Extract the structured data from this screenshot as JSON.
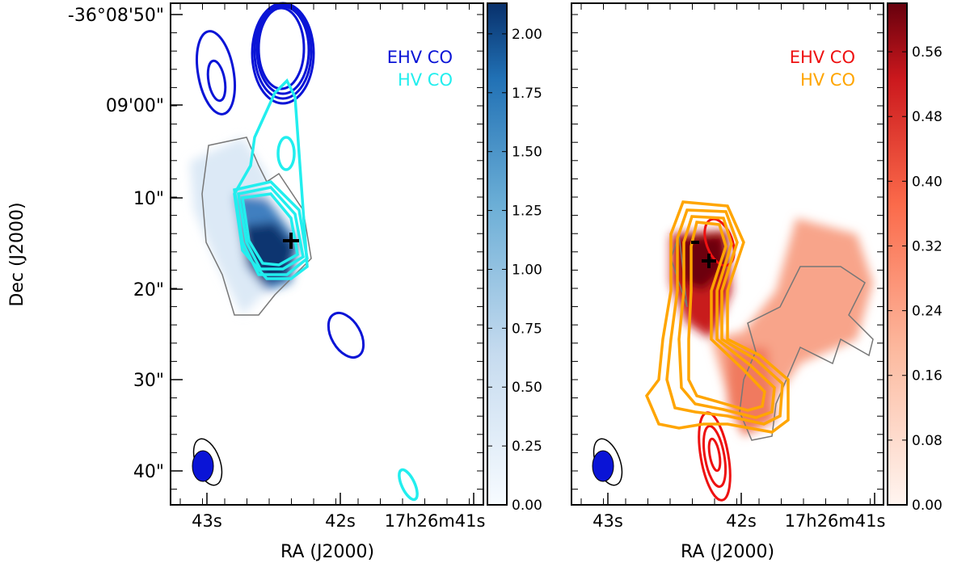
{
  "chart_data": [
    {
      "type": "heatmap",
      "panel": "left",
      "ylabel": "Dec (J2000)",
      "xlabel": "RA (J2000)",
      "xticks": [
        "43s",
        "42s",
        "17h26m41s"
      ],
      "yticks": [
        "-36°08'50\"",
        "09'00\"",
        "10\"",
        "20\"",
        "30\"",
        "40\""
      ],
      "colormap": "Blues",
      "colorbar_range": [
        0,
        2.13
      ],
      "colorbar_ticks": [
        "0.00",
        "0.25",
        "0.50",
        "0.75",
        "1.00",
        "1.25",
        "1.50",
        "1.75",
        "2.00"
      ],
      "legend": [
        {
          "label": "EHV CO",
          "color": "#0a14d6"
        },
        {
          "label": "HV CO",
          "color": "#22eeee"
        }
      ]
    },
    {
      "type": "heatmap",
      "panel": "right",
      "xlabel": "RA (J2000)",
      "xticks": [
        "43s",
        "42s",
        "17h26m41s"
      ],
      "colormap": "Reds",
      "colorbar_range": [
        0,
        0.62
      ],
      "colorbar_ticks": [
        "0.00",
        "0.08",
        "0.16",
        "0.24",
        "0.32",
        "0.40",
        "0.48",
        "0.56"
      ],
      "legend": [
        {
          "label": "EHV CO",
          "color": "#ee1111"
        },
        {
          "label": "HV CO",
          "color": "#ffa500"
        }
      ]
    }
  ]
}
